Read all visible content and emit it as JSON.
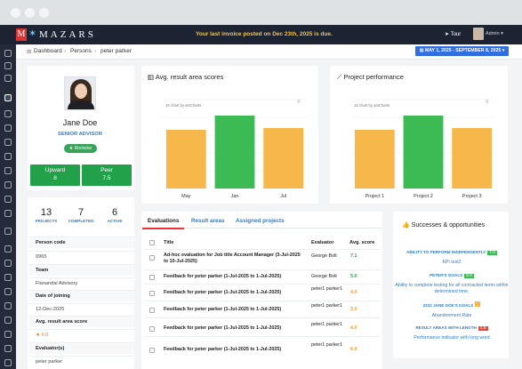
{
  "topbar": {
    "logo_letter": "M",
    "brand": "MAZARS",
    "notice": "Your last invoice posted on Dec 23th, 2025 is due.",
    "tour_label": "Tour",
    "user_label": "Admin"
  },
  "breadcrumb": {
    "items": [
      "Dashboard",
      "Persons",
      "peter parker"
    ],
    "date_range": "MAY 1, 2025 - SEPTEMBER 8, 2025"
  },
  "profile": {
    "name": "Jane Doe",
    "role": "SENIOR ADVISOR",
    "badge": "Rockstar",
    "kpis": [
      {
        "label": "Upward",
        "value": "8"
      },
      {
        "label": "Peer",
        "value": "7.5"
      }
    ],
    "stats": [
      {
        "number": "13",
        "label": "PROJECTS"
      },
      {
        "number": "7",
        "label": "COMPLETED"
      },
      {
        "number": "6",
        "label": "ACTIVE"
      }
    ],
    "info": [
      {
        "label": "Person code",
        "value": "0965"
      },
      {
        "label": "Team",
        "value": "Flanandal Advisory"
      },
      {
        "label": "Date of joining",
        "value": "12-Dec-2025"
      },
      {
        "label": "Avg. result area score",
        "value": "6.0"
      },
      {
        "label": "Evaluator(s)",
        "value": "peter parker"
      }
    ]
  },
  "charts_meta": {
    "avg_title": "Avg. result area scores",
    "avg_note": "JS chart by amCharts",
    "proj_title": "Project performance",
    "proj_note": "JS chart by amCharts"
  },
  "chart_data": [
    {
      "type": "bar",
      "title": "Avg. result area scores",
      "categories": [
        "May",
        "Jan",
        "Jul"
      ],
      "values": [
        6.6,
        8.2,
        6.8
      ],
      "colors": [
        "#f7b84b",
        "#3cba54",
        "#f7b84b"
      ],
      "ylim": [
        0,
        10
      ],
      "grid": true,
      "legend": "none"
    },
    {
      "type": "bar",
      "title": "Project performance",
      "categories": [
        "Project 1",
        "Project 2",
        "Project 3"
      ],
      "values": [
        6.6,
        8.2,
        6.8
      ],
      "colors": [
        "#f7b84b",
        "#3cba54",
        "#f7b84b"
      ],
      "ylim": [
        0,
        10
      ],
      "grid": true,
      "legend": "none"
    }
  ],
  "tabs": [
    "Evaluations",
    "Result areas",
    "Assigned projects"
  ],
  "table": {
    "headers": [
      "Title",
      "Evaluator",
      "Avg. score"
    ],
    "rows": [
      {
        "title": "Ad-hoc evaluation for Job title Account Manager (3-Jul-2025 to 10-Jul-2025)",
        "evaluator": "George Bolt",
        "score": "7.1",
        "color": "#2ca24c"
      },
      {
        "title": "Feedback for peter parker (1-Jul-2025 to 1-Jul-2025)",
        "evaluator": "George Bolt",
        "score": "5.0",
        "color": "#2ca24c"
      },
      {
        "title": "Feedback for peter parker (1-Jul-2025 to 1-Jul-2025)",
        "evaluator": "peter1 parker1",
        "score": "4.0",
        "color": "#f0a030"
      },
      {
        "title": "Feedback for peter parker (1-Jul-2025 to 1-Jul-2025)",
        "evaluator": "peter1 parker1",
        "score": "3.0",
        "color": "#f0a030"
      },
      {
        "title": "Feedback for peter parker (1-Jul-2025 to 1-Jul-2025)",
        "evaluator": "peter1 parker1",
        "score": "4.0",
        "color": "#f0a030"
      },
      {
        "title": "Feedback for peter parker (1-Jul-2025 to 1-Jul-2025)",
        "evaluator": "peter1 parker1",
        "score": "6.0",
        "color": "#f0a030"
      }
    ]
  },
  "successes": {
    "title": "Successes & opportunities",
    "items": [
      {
        "heading": "ABILITY TO PERFORM INDEPENDENTLY",
        "badge": "7.0",
        "badge_color": "#3cba54",
        "desc": "KPI test2"
      },
      {
        "heading": "PETER'S GOALS",
        "badge": "8.5",
        "badge_color": "#3cba54",
        "desc": "Ability to complete testing for all contracted items within determined time."
      },
      {
        "heading": "2222 JANE DOE'S GOALS",
        "badge": "",
        "badge_color": "#f7b84b",
        "desc": "Abandonment Rate"
      },
      {
        "heading": "RESULT AREAS WITH LENGTH",
        "badge": "2.5",
        "badge_color": "#e04b3a",
        "desc": "Performance indicator with long word"
      }
    ]
  }
}
